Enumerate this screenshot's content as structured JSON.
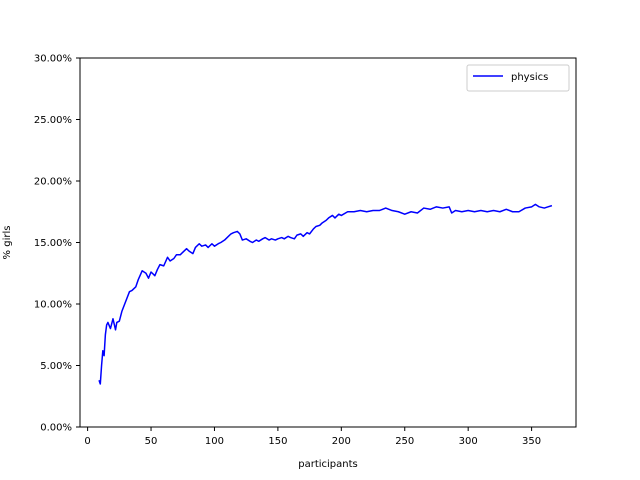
{
  "chart_data": {
    "type": "line",
    "xlabel": "participants",
    "ylabel": "% girls",
    "xlim": [
      -6,
      385
    ],
    "ylim": [
      0,
      30
    ],
    "xticks": [
      0,
      50,
      100,
      150,
      200,
      250,
      300,
      350
    ],
    "yticks": [
      0,
      5,
      10,
      15,
      20,
      25,
      30
    ],
    "ytick_labels": [
      "0.00%",
      "5.00%",
      "10.00%",
      "15.00%",
      "20.00%",
      "25.00%",
      "30.00%"
    ],
    "grid": false,
    "legend_position": "top-right",
    "series": [
      {
        "name": "physics",
        "color": "#0000ff",
        "x": [
          9,
          10,
          11,
          12,
          13,
          14,
          15,
          16,
          18,
          20,
          22,
          23,
          25,
          27,
          30,
          33,
          35,
          38,
          40,
          43,
          46,
          48,
          50,
          53,
          55,
          57,
          60,
          63,
          65,
          68,
          70,
          73,
          75,
          78,
          80,
          83,
          85,
          88,
          90,
          93,
          95,
          98,
          100,
          103,
          105,
          108,
          110,
          113,
          115,
          118,
          120,
          122,
          125,
          128,
          130,
          133,
          135,
          138,
          140,
          143,
          145,
          148,
          150,
          153,
          155,
          158,
          160,
          163,
          165,
          168,
          170,
          173,
          175,
          178,
          180,
          183,
          185,
          188,
          190,
          193,
          195,
          198,
          200,
          205,
          210,
          215,
          220,
          225,
          230,
          235,
          240,
          245,
          250,
          255,
          260,
          265,
          270,
          275,
          280,
          285,
          287,
          290,
          295,
          300,
          305,
          310,
          315,
          320,
          325,
          330,
          335,
          340,
          345,
          350,
          353,
          356,
          360,
          363,
          366
        ],
        "y": [
          3.8,
          3.5,
          5.0,
          6.2,
          5.8,
          7.5,
          8.3,
          8.5,
          8.0,
          8.8,
          7.9,
          8.5,
          8.6,
          9.4,
          10.2,
          11.0,
          11.1,
          11.4,
          12.0,
          12.7,
          12.5,
          12.1,
          12.6,
          12.3,
          12.8,
          13.2,
          13.1,
          13.8,
          13.5,
          13.7,
          14.0,
          14.0,
          14.2,
          14.5,
          14.3,
          14.1,
          14.6,
          14.9,
          14.7,
          14.8,
          14.6,
          14.9,
          14.7,
          14.9,
          15.0,
          15.2,
          15.4,
          15.7,
          15.8,
          15.9,
          15.7,
          15.2,
          15.3,
          15.1,
          15.0,
          15.2,
          15.1,
          15.3,
          15.4,
          15.2,
          15.3,
          15.2,
          15.3,
          15.4,
          15.3,
          15.5,
          15.4,
          15.3,
          15.6,
          15.7,
          15.5,
          15.8,
          15.7,
          16.1,
          16.3,
          16.4,
          16.6,
          16.8,
          17.0,
          17.2,
          17.0,
          17.3,
          17.2,
          17.5,
          17.5,
          17.6,
          17.5,
          17.6,
          17.6,
          17.8,
          17.6,
          17.5,
          17.3,
          17.5,
          17.4,
          17.8,
          17.7,
          17.9,
          17.8,
          17.9,
          17.4,
          17.6,
          17.5,
          17.6,
          17.5,
          17.6,
          17.5,
          17.6,
          17.5,
          17.7,
          17.5,
          17.5,
          17.8,
          17.9,
          18.1,
          17.9,
          17.8,
          17.9,
          18.0
        ]
      }
    ]
  }
}
